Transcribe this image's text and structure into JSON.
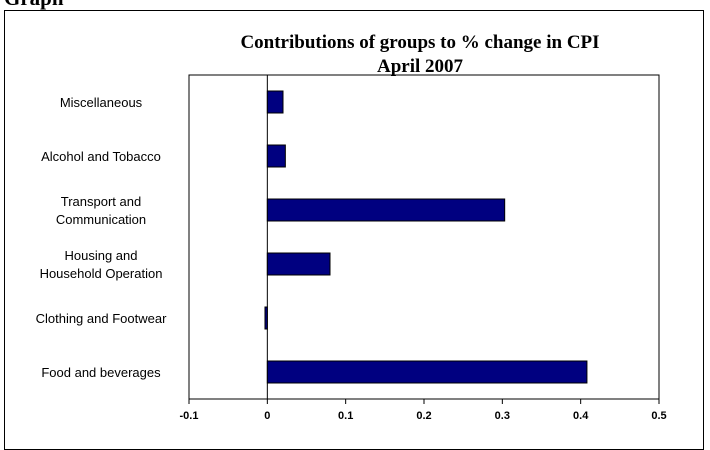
{
  "heading_fragment": "Graph",
  "chart_data": {
    "type": "bar",
    "orientation": "horizontal",
    "title": "Contributions of groups to % change in CPI",
    "subtitle": "April 2007",
    "categories": [
      [
        "Miscellaneous"
      ],
      [
        "Alcohol and Tobacco"
      ],
      [
        "Transport and",
        "Communication"
      ],
      [
        "Housing and",
        "Household Operation"
      ],
      [
        "Clothing and Footwear"
      ],
      [
        "Food and beverages"
      ]
    ],
    "values": [
      0.02,
      0.023,
      0.303,
      0.08,
      -0.003,
      0.408
    ],
    "xlim": [
      -0.1,
      0.5
    ],
    "xticks": [
      "-0.1",
      "0",
      "0.1",
      "0.2",
      "0.3",
      "0.4",
      "0.5"
    ],
    "bar_color": "#000080",
    "grid": false,
    "legend": "none"
  }
}
